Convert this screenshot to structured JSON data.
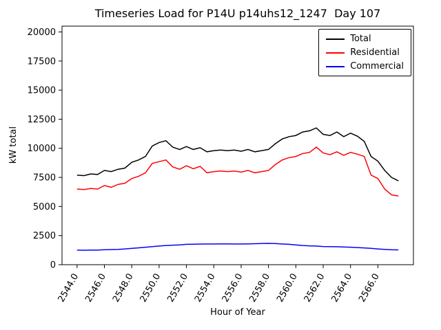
{
  "chart_data": {
    "type": "line",
    "title": "Timeseries Load for P14U p14uhs12_1247  Day 107",
    "xlabel": "Hour of Year",
    "ylabel": "kW total",
    "xlim": [
      2542.9,
      2568.6
    ],
    "ylim": [
      0,
      20500
    ],
    "yticks": [
      0,
      2500,
      5000,
      7500,
      10000,
      12500,
      15000,
      17500,
      20000
    ],
    "xticks": [
      2544,
      2546,
      2548,
      2550,
      2552,
      2554,
      2556,
      2558,
      2560,
      2562,
      2564,
      2566
    ],
    "xtick_labels": [
      "2544.0",
      "2546.0",
      "2548.0",
      "2550.0",
      "2552.0",
      "2554.0",
      "2556.0",
      "2558.0",
      "2560.0",
      "2562.0",
      "2564.0",
      "2566.0"
    ],
    "legend_position": "upper right",
    "grid": false,
    "x": [
      2544.0,
      2544.5,
      2545.0,
      2545.5,
      2546.0,
      2546.5,
      2547.0,
      2547.5,
      2548.0,
      2548.5,
      2549.0,
      2549.5,
      2550.0,
      2550.5,
      2551.0,
      2551.5,
      2552.0,
      2552.5,
      2553.0,
      2553.5,
      2554.0,
      2554.5,
      2555.0,
      2555.5,
      2556.0,
      2556.5,
      2557.0,
      2557.5,
      2558.0,
      2558.5,
      2559.0,
      2559.5,
      2560.0,
      2560.5,
      2561.0,
      2561.5,
      2562.0,
      2562.5,
      2563.0,
      2563.5,
      2564.0,
      2564.5,
      2565.0,
      2565.5,
      2566.0,
      2566.5,
      2567.0,
      2567.5
    ],
    "series": [
      {
        "name": "Total",
        "color": "#000000",
        "values": [
          7700,
          7650,
          7800,
          7750,
          8100,
          8000,
          8200,
          8300,
          8800,
          9000,
          9300,
          10200,
          10500,
          10650,
          10100,
          9900,
          10150,
          9900,
          10050,
          9700,
          9800,
          9850,
          9800,
          9850,
          9750,
          9900,
          9700,
          9800,
          9900,
          10400,
          10800,
          11000,
          11100,
          11400,
          11500,
          11750,
          11200,
          11100,
          11400,
          11000,
          11300,
          11050,
          10600,
          9300,
          8900,
          8100,
          7500,
          7200
        ]
      },
      {
        "name": "Residential",
        "color": "#ff0000",
        "values": [
          6500,
          6450,
          6550,
          6500,
          6800,
          6650,
          6900,
          7000,
          7400,
          7600,
          7900,
          8700,
          8850,
          9000,
          8400,
          8200,
          8500,
          8250,
          8450,
          7900,
          8000,
          8050,
          8000,
          8050,
          7950,
          8100,
          7900,
          8000,
          8100,
          8600,
          9000,
          9200,
          9300,
          9550,
          9650,
          10100,
          9600,
          9450,
          9700,
          9400,
          9650,
          9500,
          9300,
          7700,
          7400,
          6500,
          6000,
          5900
        ]
      },
      {
        "name": "Commercial",
        "color": "#0000ff",
        "values": [
          1250,
          1240,
          1250,
          1260,
          1280,
          1300,
          1320,
          1350,
          1400,
          1450,
          1500,
          1550,
          1600,
          1650,
          1680,
          1700,
          1750,
          1760,
          1770,
          1780,
          1780,
          1790,
          1790,
          1780,
          1780,
          1790,
          1800,
          1820,
          1830,
          1820,
          1780,
          1750,
          1700,
          1650,
          1620,
          1600,
          1560,
          1550,
          1540,
          1520,
          1500,
          1470,
          1440,
          1400,
          1350,
          1320,
          1280,
          1270
        ]
      }
    ]
  }
}
